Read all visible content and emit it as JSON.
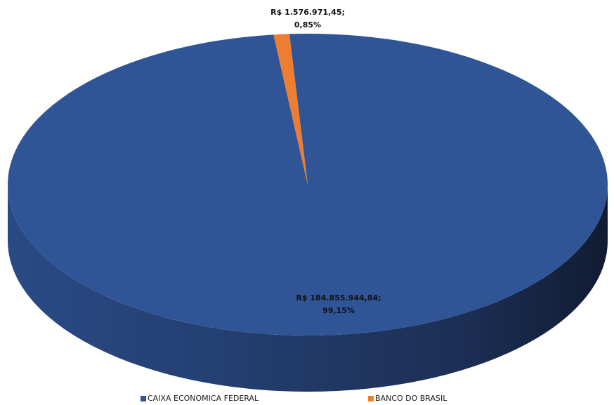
{
  "chart_data": {
    "type": "pie",
    "style": "3d",
    "series": [
      {
        "name": "CAIXA ECONOMICA FEDERAL",
        "value": 184855944.84,
        "percent": 99.15,
        "value_label": "R$ 184.855.944,84;",
        "percent_label": "99,15%",
        "color": "#2F5597"
      },
      {
        "name": "BANCO DO BRASIL",
        "value": 1576971.45,
        "percent": 0.85,
        "value_label": "R$ 1.576.971,45;",
        "percent_label": "0,85%",
        "color": "#ED7D31"
      }
    ],
    "legend_position": "bottom"
  }
}
